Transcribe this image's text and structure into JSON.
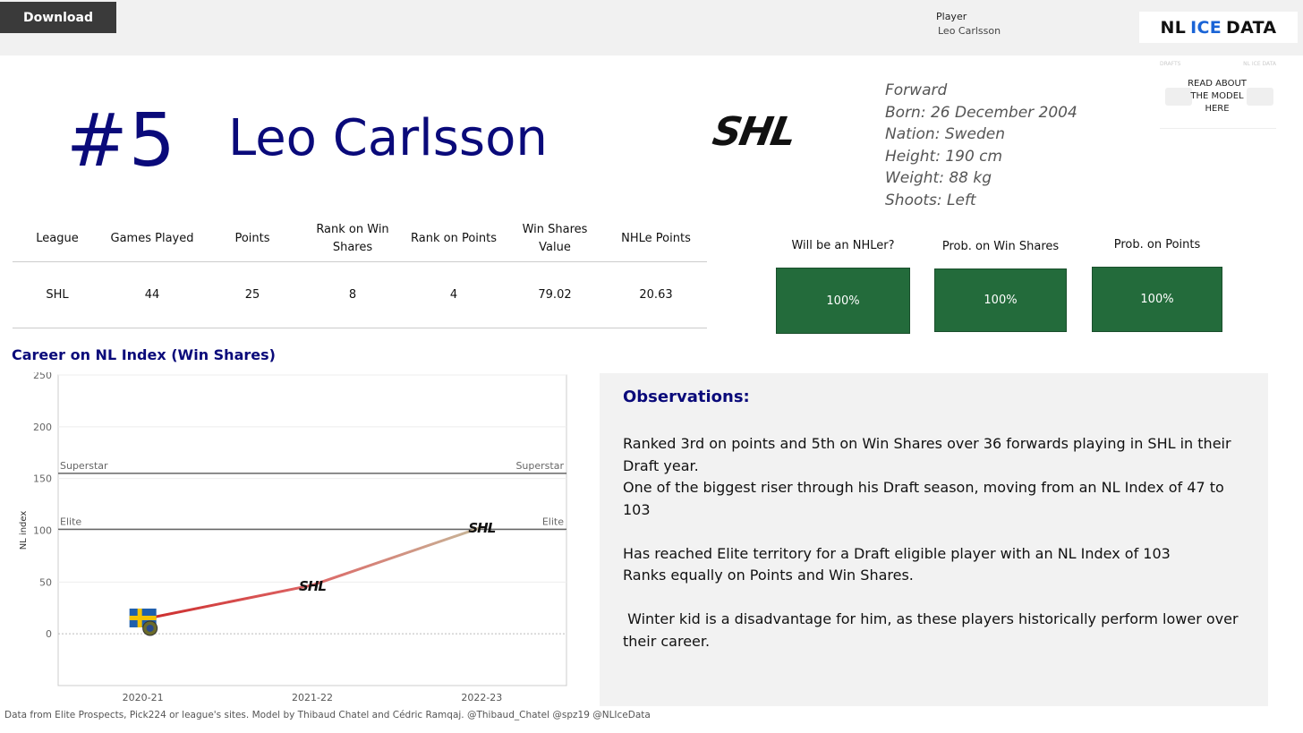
{
  "topbar": {
    "download_label": "Download",
    "player_label": "Player",
    "player_value": "Leo Carlsson",
    "brand_part1": "NL",
    "brand_part2": "ICE",
    "brand_part3": "DATA"
  },
  "read_model": {
    "label": "READ ABOUT THE MODEL HERE",
    "ghost_left": "DRAFTS",
    "ghost_right": "NL ICE DATA"
  },
  "header": {
    "jersey": "#5",
    "name": "Leo Carlsson",
    "league_logo": "SHL"
  },
  "bio": {
    "position": "Forward",
    "born": "Born: 26 December 2004",
    "nation": "Nation: Sweden",
    "height": "Height: 190 cm",
    "weight": "Weight: 88 kg",
    "shoots": "Shoots: Left"
  },
  "stats_table": {
    "headers": [
      "League",
      "Games Played",
      "Points",
      "Rank on Win Shares",
      "Rank on Points",
      "Win Shares Value",
      "NHLe Points"
    ],
    "rows": [
      [
        "SHL",
        "44",
        "25",
        "8",
        "4",
        "79.02",
        "20.63"
      ]
    ]
  },
  "probabilities": [
    {
      "label": "Will be an NHLer?",
      "value": "100%"
    },
    {
      "label": "Prob. on Win Shares",
      "value": "100%"
    },
    {
      "label": "Prob. on Points",
      "value": "100%"
    }
  ],
  "career_title": "Career on NL Index (Win Shares)",
  "chart_data": {
    "type": "line",
    "title": "Career on NL Index (Win Shares)",
    "ylabel": "NL index",
    "xlabel": "",
    "categories": [
      "2020-21",
      "2021-22",
      "2022-23"
    ],
    "values": [
      14,
      47,
      103
    ],
    "point_markers": [
      "sweden-flag",
      "SHL",
      "SHL"
    ],
    "ylim": [
      -50,
      250
    ],
    "yticks": [
      0,
      50,
      100,
      150,
      200,
      250
    ],
    "reference_lines": [
      {
        "label": "Superstar",
        "value": 155
      },
      {
        "label": "Elite",
        "value": 101
      }
    ],
    "grid": true,
    "colors": {
      "start": "#cc2a2a",
      "mid": "#dd6666",
      "end": "#c6b99a",
      "axis": "#888888",
      "ref": "#666666"
    }
  },
  "observations": {
    "title": "Observations:",
    "paragraphs": [
      "Ranked 3rd on points and 5th on Win Shares over 36 forwards playing in SHL in their Draft year.",
      "One of the biggest riser through his Draft season, moving from an NL Index of 47 to 103",
      "",
      "Has reached Elite territory for a Draft eligible player with an NL Index of 103",
      "Ranks equally on Points and Win Shares.",
      "",
      " Winter kid is a disadvantage for him, as these players historically perform lower over their career."
    ]
  },
  "footer": "Data from Elite Prospects, Pick224 or league's sites. Model by Thibaud Chatel and Cédric Ramqaj. @Thibaud_Chatel @spz19 @NLIceData"
}
